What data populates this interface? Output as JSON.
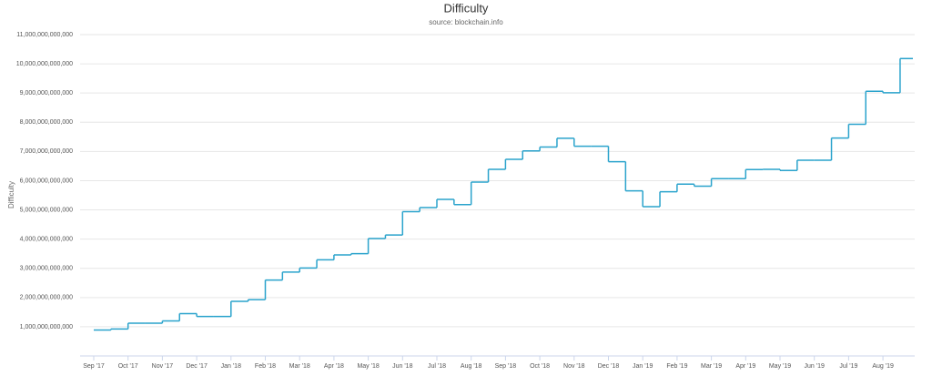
{
  "chart_data": {
    "type": "line",
    "title": "Difficulty",
    "subtitle": "source: blockchain.info",
    "y_label": "Difficulty",
    "step": true,
    "grid": true,
    "categories": [
      "Sep '17",
      null,
      "Oct '17",
      null,
      "Nov '17",
      null,
      "Dec '17",
      null,
      "Jan '18",
      null,
      "Feb '18",
      null,
      "Mar '18",
      null,
      "Apr '18",
      null,
      "May '18",
      null,
      "Jun '18",
      null,
      "Jul '18",
      null,
      "Aug '18",
      null,
      "Sep '18",
      null,
      "Oct '18",
      null,
      "Nov '18",
      null,
      "Dec '18",
      null,
      "Jan '19",
      null,
      "Feb '19",
      null,
      "Mar '19",
      null,
      "Apr '19",
      null,
      "May '19",
      null,
      "Jun '19",
      null,
      "Jul '19",
      null,
      "Aug '19",
      null
    ],
    "series": [
      {
        "name": "Difficulty",
        "color": "#2aa3cc",
        "values": [
          888000000000,
          923000000000,
          1120000000000,
          1120000000000,
          1200000000000,
          1450000000000,
          1350000000000,
          1350000000000,
          1870000000000,
          1930000000000,
          2600000000000,
          2870000000000,
          3010000000000,
          3290000000000,
          3460000000000,
          3500000000000,
          4020000000000,
          4140000000000,
          4940000000000,
          5080000000000,
          5360000000000,
          5180000000000,
          5950000000000,
          6390000000000,
          6730000000000,
          7020000000000,
          7150000000000,
          7450000000000,
          7180000000000,
          7180000000000,
          6650000000000,
          5650000000000,
          5110000000000,
          5620000000000,
          5880000000000,
          5810000000000,
          6070000000000,
          6070000000000,
          6380000000000,
          6390000000000,
          6350000000000,
          6700000000000,
          6700000000000,
          7460000000000,
          7930000000000,
          9060000000000,
          9010000000000,
          10180000000000
        ]
      }
    ],
    "ylim": [
      0,
      11000000000000
    ],
    "yticks": [
      {
        "value": 1000000000000,
        "label": "1,000,000,000,000"
      },
      {
        "value": 2000000000000,
        "label": "2,000,000,000,000"
      },
      {
        "value": 3000000000000,
        "label": "3,000,000,000,000"
      },
      {
        "value": 4000000000000,
        "label": "4,000,000,000,000"
      },
      {
        "value": 5000000000000,
        "label": "5,000,000,000,000"
      },
      {
        "value": 6000000000000,
        "label": "6,000,000,000,000"
      },
      {
        "value": 7000000000000,
        "label": "7,000,000,000,000"
      },
      {
        "value": 8000000000000,
        "label": "8,000,000,000,000"
      },
      {
        "value": 9000000000000,
        "label": "9,000,000,000,000"
      },
      {
        "value": 10000000000000,
        "label": "10,000,000,000,000"
      },
      {
        "value": 11000000000000,
        "label": "11,000,000,000,000"
      }
    ]
  }
}
